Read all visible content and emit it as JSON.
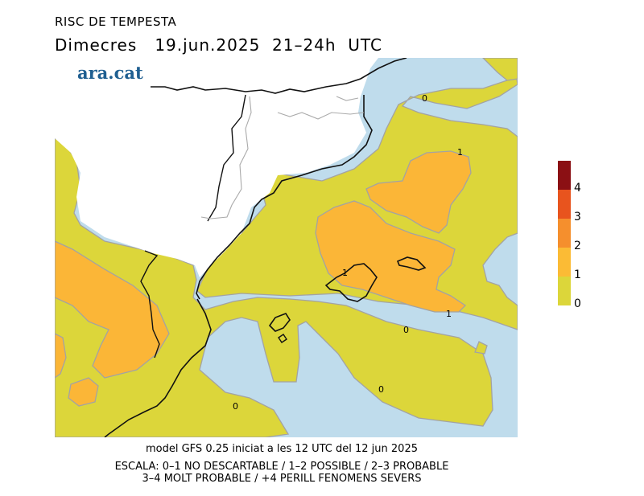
{
  "header": {
    "title": "RISC DE TEMPESTA",
    "subtitle": "Dimecres   19.jun.2025  21–24h  UTC"
  },
  "logo": {
    "text": "ara.cat",
    "color": "#1f5f91"
  },
  "footer": {
    "model_line": "model GFS 0.25 iniciat a les 12 UTC del 12 jun 2025",
    "scale_line1": "ESCALA: 0–1 NO DESCARTABLE / 1–2 POSSIBLE / 2–3 PROBABLE",
    "scale_line2": "3–4 MOLT PROBABLE / +4 PERILL FENOMENS SEVERS"
  },
  "legend": {
    "labels": [
      "4",
      "3",
      "2",
      "1",
      "0"
    ],
    "colors": [
      "#8b1014",
      "#e8541e",
      "#f58f2d",
      "#fbbb35",
      "#dcd63a"
    ]
  },
  "map": {
    "colors": {
      "sea_low_risk": "#bfdcec",
      "risk_0_1": "#dcd63a",
      "risk_1_2": "#fbb637",
      "land_no_data": "#ffffff",
      "contour": "#a3a3a3",
      "coast": "#111111",
      "border": "#aaaaaa"
    },
    "contour_labels": {
      "zero_north": "0",
      "one_northeast": "1",
      "one_mallorca": "1",
      "one_east": "1",
      "zero_center": "0",
      "zero_south": "0",
      "zero_southwest": "0"
    }
  }
}
